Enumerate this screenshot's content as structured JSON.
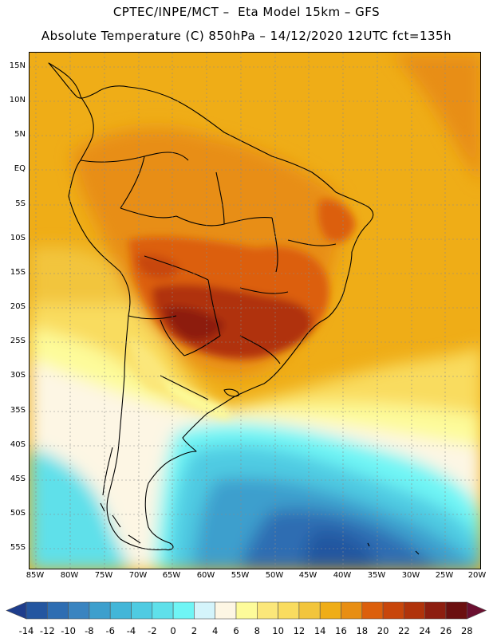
{
  "header": {
    "line1": "CPTEC/INPE/MCT –  Eta Model 15km – GFS",
    "line2": "Absolute Temperature (C) 850hPa – 14/12/2020 12UTC fct=135h"
  },
  "map": {
    "region": "South America",
    "lat_labels": [
      "15N",
      "10N",
      "5N",
      "EQ",
      "5S",
      "10S",
      "15S",
      "20S",
      "25S",
      "30S",
      "35S",
      "40S",
      "45S",
      "50S",
      "55S"
    ],
    "lon_labels": [
      "85W",
      "80W",
      "75W",
      "70W",
      "65W",
      "60W",
      "55W",
      "50W",
      "45W",
      "40W",
      "35W",
      "30W",
      "25W",
      "20W"
    ]
  },
  "colorbar": {
    "labels": [
      "-14",
      "-12",
      "-10",
      "-8",
      "-6",
      "-4",
      "-2",
      "0",
      "2",
      "4",
      "6",
      "8",
      "10",
      "12",
      "14",
      "16",
      "18",
      "20",
      "22",
      "24",
      "26",
      "28"
    ],
    "colors": [
      "#1e3d8c",
      "#2456a0",
      "#2e6db2",
      "#3a84c0",
      "#3d9fcd",
      "#43b6d8",
      "#4fcbe2",
      "#5fe0ea",
      "#6ff5f5",
      "#d4f4fb",
      "#fdf6e4",
      "#fdfb9a",
      "#fbe77a",
      "#f9dc5f",
      "#f2c53c",
      "#efad17",
      "#e88e13",
      "#dc5f0c",
      "#c8460b",
      "#b0330b",
      "#8d1e10",
      "#6b1010"
    ]
  }
}
